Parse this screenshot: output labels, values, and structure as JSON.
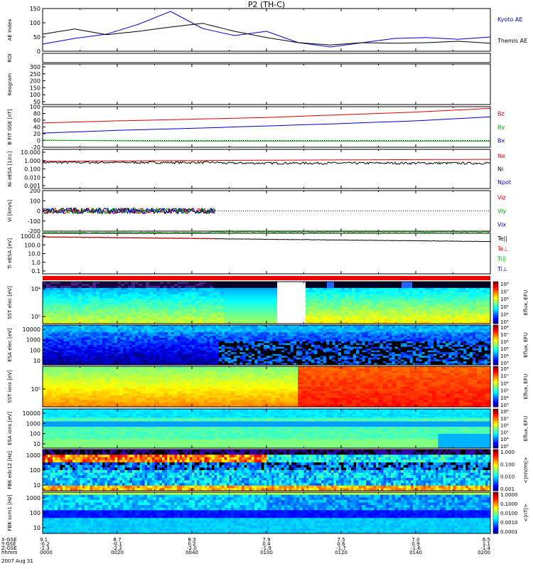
{
  "title": "P2 (TH-C)",
  "chart_data": {
    "type": "multi-panel time series and spectrograms",
    "date": "2007 Aug 31",
    "time_ticks": [
      "0000",
      "0020",
      "0040",
      "0100",
      "0120",
      "0140",
      "0200"
    ],
    "ephemeris": {
      "labels": [
        "X-GSE",
        "Y-GSE",
        "Z-GSE",
        "hhmm"
      ],
      "x_gse": [
        "9.1",
        "8.7",
        "8.3",
        "7.9",
        "7.5",
        "7.0",
        "6.5"
      ],
      "y_gse": [
        "-0.2",
        "-0.1",
        "0.2",
        "0.4",
        "0.6",
        "0.9",
        "1.1"
      ],
      "z_gse": [
        "-2.3",
        "-2.2",
        "-2.0",
        "-1.9",
        "-1.7",
        "-1.6",
        "-1.4"
      ]
    },
    "panels": {
      "ae": {
        "ylabel": "AE Index",
        "ylim": [
          0,
          150
        ],
        "yticks": [
          "0",
          "50",
          "100",
          "150"
        ],
        "legend": [
          "Kyoto AE",
          "Themis AE"
        ],
        "series": [
          {
            "name": "Kyoto AE",
            "color": "#0000cc",
            "values": [
              25,
              45,
              60,
              95,
              140,
              80,
              55,
              70,
              30,
              15,
              30,
              45,
              48,
              42,
              50
            ]
          },
          {
            "name": "Themis AE",
            "color": "#000000",
            "values": [
              60,
              78,
              58,
              70,
              85,
              98,
              70,
              48,
              30,
              22,
              30,
              28,
              30,
              35,
              28
            ]
          }
        ]
      },
      "roi": {
        "ylabel": "ROI"
      },
      "keogram": {
        "ylabel": "Keogram",
        "yticks": [
          "50",
          "100",
          "150",
          "200",
          "250",
          "300"
        ]
      },
      "bfit": {
        "ylabel": "B FIT GSE [nT]",
        "ylim": [
          -20,
          100
        ],
        "yticks": [
          "-20",
          "0",
          "20",
          "40",
          "60",
          "80",
          "100"
        ],
        "legend": [
          "Bz",
          "By",
          "Bx"
        ],
        "series": [
          {
            "name": "Bz",
            "color": "#dd0000",
            "values": [
              52,
              58,
              63,
              68,
              76,
              84,
              95
            ]
          },
          {
            "name": "By",
            "color": "#00aa00",
            "values": [
              1,
              -1,
              -2,
              -2,
              -2,
              -2,
              -2
            ]
          },
          {
            "name": "Bx",
            "color": "#0000cc",
            "values": [
              22,
              30,
              36,
              43,
              50,
              58,
              70
            ]
          }
        ]
      },
      "density": {
        "ylabel": "Ni eESA [1/cc]",
        "yticks": [
          "0.001",
          "0.010",
          "0.100",
          "1.000",
          "10.000"
        ],
        "legend": [
          "Ne",
          "Ni",
          "Npot"
        ]
      },
      "velocity": {
        "ylabel": "Vi [km/s]",
        "ylim": [
          -200,
          200
        ],
        "yticks": [
          "-200",
          "-100",
          "0",
          "100",
          "200"
        ],
        "legend": [
          "Viz",
          "Viy",
          "Vix"
        ]
      },
      "temperature": {
        "ylabel": "Ti eESA [eV]",
        "yticks": [
          "0.1",
          "1.0",
          "10.0",
          "100.0",
          "1000.0"
        ],
        "legend": [
          "Te||",
          "Te⊥",
          "Ti||",
          "Ti⊥"
        ]
      },
      "sst_e": {
        "ylabel": "SST elec [eV]",
        "yticks": [
          "10⁵",
          "10⁴"
        ]
      },
      "esa_e": {
        "ylabel": "ESA elec [eV]",
        "yticks": [
          "10",
          "100",
          "1000",
          "10000"
        ]
      },
      "sst_i": {
        "ylabel": "SST ions [eV]",
        "yticks": [
          "10⁵"
        ]
      },
      "esa_i": {
        "ylabel": "ESA ions [eV]",
        "yticks": [
          "10",
          "100",
          "1000",
          "10000"
        ]
      },
      "fbk_e": {
        "ylabel": "FBK edc12 [Hz]",
        "yticks": [
          "10",
          "100",
          "1000"
        ]
      },
      "fbk_b": {
        "ylabel": "FBK scm1 [Hz]",
        "yticks": [
          "10",
          "100",
          "1000"
        ]
      }
    },
    "colorbars": {
      "eflux_label": "Eflux, EFU",
      "eflux_ticks": [
        "10³",
        "10⁴",
        "10⁵",
        "10⁶",
        "10⁷",
        "10⁸"
      ],
      "fbk_e_label": "<|mV/m|>",
      "fbk_e_ticks": [
        "0.001",
        "0.010",
        "0.100",
        "1.000"
      ],
      "fbk_b_label": "<|nT|>",
      "fbk_b_ticks": [
        "0.0001",
        "0.0010",
        "0.0100",
        "0.1000",
        "1.0000"
      ]
    }
  }
}
